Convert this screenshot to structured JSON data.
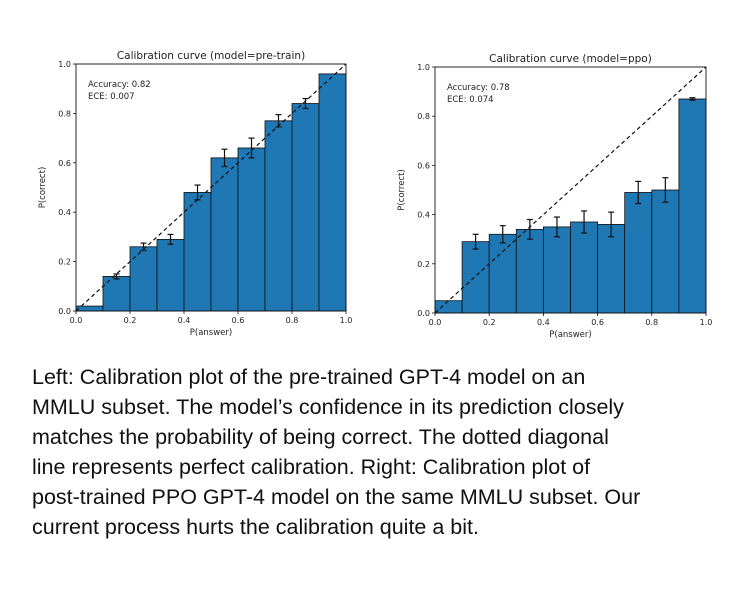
{
  "chart_data": [
    {
      "type": "bar",
      "title": "Calibration curve (model=pre-train)",
      "xlabel": "P(answer)",
      "ylabel": "P(correct)",
      "xlim": [
        0,
        1
      ],
      "ylim": [
        0,
        1
      ],
      "x_ticks": [
        "0.0",
        "0.2",
        "0.4",
        "0.6",
        "0.8",
        "1.0"
      ],
      "y_ticks": [
        "0.0",
        "0.2",
        "0.4",
        "0.6",
        "0.8",
        "1.0"
      ],
      "annotations": [
        "Accuracy: 0.82",
        "ECE: 0.007"
      ],
      "bin_edges": [
        0,
        0.1,
        0.2,
        0.3,
        0.4,
        0.5,
        0.6,
        0.7,
        0.8,
        0.9,
        1.0
      ],
      "values": [
        0.02,
        0.14,
        0.26,
        0.29,
        0.48,
        0.62,
        0.66,
        0.77,
        0.84,
        0.96
      ],
      "errors": [
        0.0,
        0.01,
        0.015,
        0.02,
        0.03,
        0.035,
        0.04,
        0.025,
        0.02,
        0.0
      ],
      "reference_line": "dashed diagonal y = x",
      "bar_color": "#1f77b4"
    },
    {
      "type": "bar",
      "title": "Calibration curve (model=ppo)",
      "xlabel": "P(answer)",
      "ylabel": "P(correct)",
      "xlim": [
        0,
        1
      ],
      "ylim": [
        0,
        1
      ],
      "x_ticks": [
        "0.0",
        "0.2",
        "0.4",
        "0.6",
        "0.8",
        "1.0"
      ],
      "y_ticks": [
        "0.0",
        "0.2",
        "0.4",
        "0.6",
        "0.8",
        "1.0"
      ],
      "annotations": [
        "Accuracy: 0.78",
        "ECE: 0.074"
      ],
      "bin_edges": [
        0,
        0.1,
        0.2,
        0.3,
        0.4,
        0.5,
        0.6,
        0.7,
        0.8,
        0.9,
        1.0
      ],
      "values": [
        0.05,
        0.29,
        0.32,
        0.34,
        0.35,
        0.37,
        0.36,
        0.49,
        0.5,
        0.87
      ],
      "errors": [
        0.0,
        0.03,
        0.035,
        0.04,
        0.04,
        0.045,
        0.05,
        0.045,
        0.05,
        0.005
      ],
      "reference_line": "dashed diagonal y = x",
      "bar_color": "#1f77b4"
    }
  ],
  "caption": [
    "Left: Calibration plot of the pre-trained GPT-4 model on an",
    "MMLU subset. The model’s confidence in its prediction closely",
    "matches the probability of being correct. The dotted diagonal",
    "line represents perfect calibration. Right: Calibration plot of",
    "post-trained PPO GPT-4 model on the same MMLU subset. Our",
    "current process hurts the calibration quite a bit."
  ]
}
